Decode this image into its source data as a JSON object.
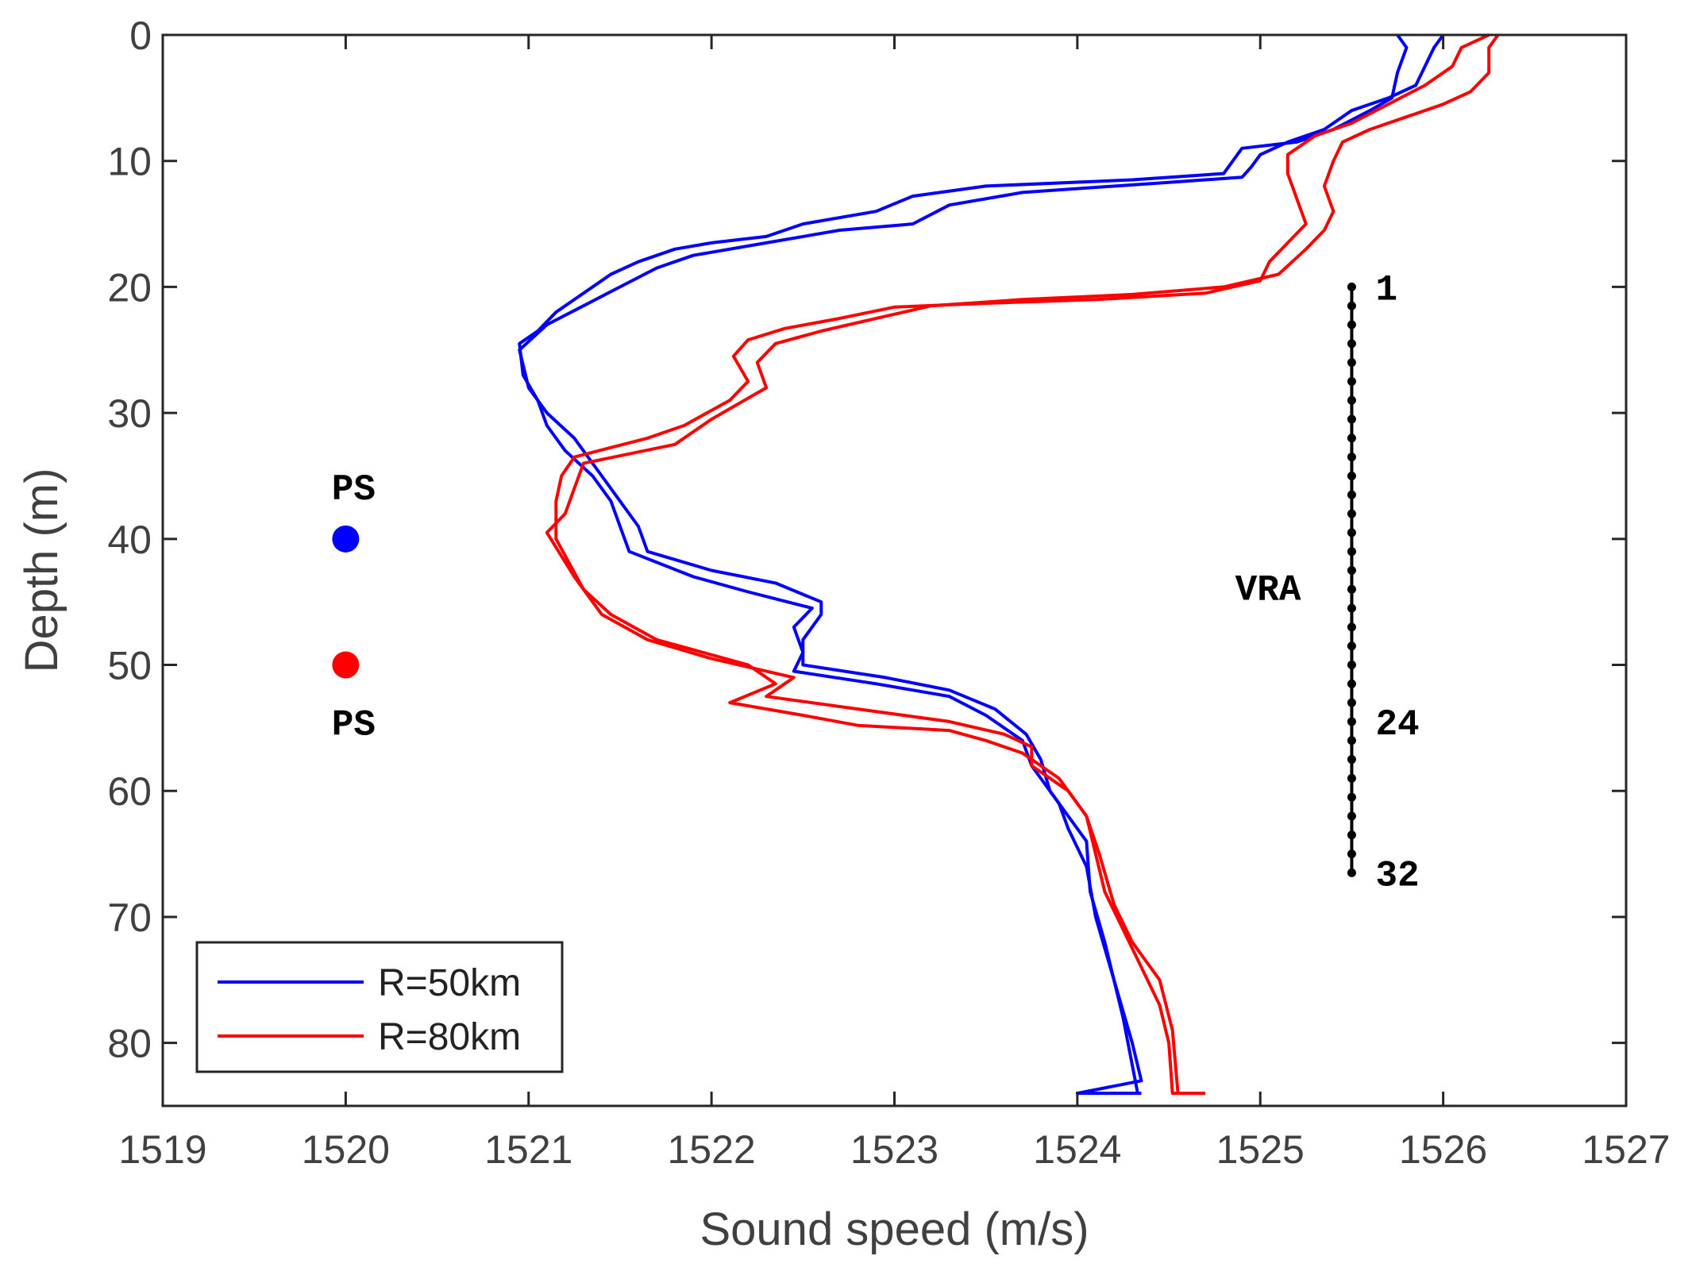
{
  "chart_data": {
    "type": "line",
    "title": "",
    "xlabel": "Sound speed (m/s)",
    "ylabel": "Depth (m)",
    "xlim": [
      1519,
      1527
    ],
    "ylim": [
      0,
      85
    ],
    "y_reversed": true,
    "xticks": [
      1519,
      1520,
      1521,
      1522,
      1523,
      1524,
      1525,
      1526,
      1527
    ],
    "yticks": [
      0,
      10,
      20,
      30,
      40,
      50,
      60,
      70,
      80
    ],
    "grid": false,
    "legend": {
      "location": "bottom-left",
      "entries": [
        {
          "label": "R=50km",
          "color": "#0000ff"
        },
        {
          "label": "R=80km",
          "color": "#ff0000"
        }
      ]
    },
    "series": [
      {
        "name": "R=50km profile A",
        "legend_label": "R=50km",
        "color": "#0000ff",
        "points": [
          [
            1525.75,
            0
          ],
          [
            1525.8,
            1
          ],
          [
            1525.75,
            3
          ],
          [
            1525.72,
            5
          ],
          [
            1525.6,
            6
          ],
          [
            1525.4,
            7.5
          ],
          [
            1525.2,
            8.5
          ],
          [
            1524.9,
            9
          ],
          [
            1524.85,
            10
          ],
          [
            1524.8,
            11
          ],
          [
            1524.3,
            11.5
          ],
          [
            1523.5,
            12
          ],
          [
            1523.1,
            12.8
          ],
          [
            1522.9,
            14
          ],
          [
            1522.5,
            15
          ],
          [
            1522.3,
            16
          ],
          [
            1522.0,
            16.5
          ],
          [
            1521.8,
            17
          ],
          [
            1521.6,
            18
          ],
          [
            1521.45,
            19
          ],
          [
            1521.3,
            20.5
          ],
          [
            1521.15,
            22
          ],
          [
            1521.05,
            23.5
          ],
          [
            1520.95,
            24.5
          ],
          [
            1520.97,
            27
          ],
          [
            1521.05,
            29
          ],
          [
            1521.1,
            31
          ],
          [
            1521.2,
            33
          ],
          [
            1521.35,
            35
          ],
          [
            1521.45,
            37
          ],
          [
            1521.5,
            39
          ],
          [
            1521.55,
            41
          ],
          [
            1521.9,
            43
          ],
          [
            1522.2,
            44.2
          ],
          [
            1522.55,
            45.5
          ],
          [
            1522.45,
            47
          ],
          [
            1522.5,
            49
          ],
          [
            1522.45,
            50.5
          ],
          [
            1522.9,
            51.5
          ],
          [
            1523.3,
            52.5
          ],
          [
            1523.5,
            54
          ],
          [
            1523.7,
            56
          ],
          [
            1523.75,
            58
          ],
          [
            1523.9,
            61
          ],
          [
            1523.95,
            63
          ],
          [
            1524.05,
            66
          ],
          [
            1524.1,
            70
          ],
          [
            1524.2,
            75
          ],
          [
            1524.3,
            80
          ],
          [
            1524.35,
            83
          ],
          [
            1524.0,
            84
          ],
          [
            1524.35,
            84
          ]
        ]
      },
      {
        "name": "R=50km profile B",
        "legend_label": "R=50km",
        "color": "#0000ff",
        "points": [
          [
            1526.0,
            0
          ],
          [
            1525.95,
            1
          ],
          [
            1525.9,
            2.5
          ],
          [
            1525.85,
            4
          ],
          [
            1525.7,
            5
          ],
          [
            1525.5,
            6
          ],
          [
            1525.35,
            7.5
          ],
          [
            1525.15,
            8.5
          ],
          [
            1525.0,
            9.5
          ],
          [
            1524.95,
            10.5
          ],
          [
            1524.9,
            11.3
          ],
          [
            1524.5,
            11.7
          ],
          [
            1523.7,
            12.5
          ],
          [
            1523.3,
            13.5
          ],
          [
            1523.1,
            15
          ],
          [
            1522.7,
            15.5
          ],
          [
            1522.3,
            16.5
          ],
          [
            1521.9,
            17.5
          ],
          [
            1521.7,
            18.5
          ],
          [
            1521.5,
            20
          ],
          [
            1521.3,
            21.5
          ],
          [
            1521.1,
            23
          ],
          [
            1520.95,
            25
          ],
          [
            1521.0,
            28
          ],
          [
            1521.1,
            30
          ],
          [
            1521.25,
            32
          ],
          [
            1521.4,
            35
          ],
          [
            1521.5,
            37
          ],
          [
            1521.6,
            39
          ],
          [
            1521.65,
            41
          ],
          [
            1522.0,
            42.5
          ],
          [
            1522.35,
            43.5
          ],
          [
            1522.6,
            45
          ],
          [
            1522.6,
            46
          ],
          [
            1522.5,
            48
          ],
          [
            1522.5,
            50
          ],
          [
            1522.95,
            51
          ],
          [
            1523.3,
            52
          ],
          [
            1523.55,
            53.5
          ],
          [
            1523.72,
            55.5
          ],
          [
            1523.8,
            57.5
          ],
          [
            1523.85,
            60
          ],
          [
            1523.95,
            62
          ],
          [
            1524.05,
            64
          ],
          [
            1524.07,
            68
          ],
          [
            1524.15,
            72
          ],
          [
            1524.25,
            78
          ],
          [
            1524.33,
            84
          ]
        ]
      },
      {
        "name": "R=80km profile A",
        "legend_label": "R=80km",
        "color": "#ff0000",
        "points": [
          [
            1526.25,
            0
          ],
          [
            1526.1,
            1
          ],
          [
            1526.05,
            2.5
          ],
          [
            1525.9,
            4
          ],
          [
            1525.7,
            5.5
          ],
          [
            1525.5,
            7
          ],
          [
            1525.3,
            8
          ],
          [
            1525.15,
            9.5
          ],
          [
            1525.15,
            11
          ],
          [
            1525.2,
            13
          ],
          [
            1525.25,
            15
          ],
          [
            1525.15,
            16.5
          ],
          [
            1525.05,
            18
          ],
          [
            1525.0,
            19.5
          ],
          [
            1524.7,
            20.5
          ],
          [
            1524.1,
            21
          ],
          [
            1523.5,
            21.3
          ],
          [
            1523.0,
            21.6
          ],
          [
            1522.7,
            22.5
          ],
          [
            1522.4,
            23.3
          ],
          [
            1522.2,
            24.2
          ],
          [
            1522.12,
            25.5
          ],
          [
            1522.2,
            27.5
          ],
          [
            1522.1,
            29
          ],
          [
            1521.85,
            31
          ],
          [
            1521.65,
            32
          ],
          [
            1521.25,
            33.5
          ],
          [
            1521.18,
            35
          ],
          [
            1521.15,
            37
          ],
          [
            1521.15,
            40
          ],
          [
            1521.3,
            44
          ],
          [
            1521.45,
            46
          ],
          [
            1521.7,
            48
          ],
          [
            1522.2,
            50
          ],
          [
            1522.35,
            51.5
          ],
          [
            1522.1,
            53
          ],
          [
            1522.5,
            54
          ],
          [
            1522.8,
            54.8
          ],
          [
            1523.3,
            55.2
          ],
          [
            1523.5,
            56
          ],
          [
            1523.7,
            57
          ],
          [
            1523.9,
            59
          ],
          [
            1524.05,
            62
          ],
          [
            1524.1,
            65
          ],
          [
            1524.15,
            68
          ],
          [
            1524.25,
            71
          ],
          [
            1524.35,
            74
          ],
          [
            1524.45,
            77
          ],
          [
            1524.5,
            80
          ],
          [
            1524.52,
            84
          ],
          [
            1524.7,
            84
          ]
        ]
      },
      {
        "name": "R=80km profile B",
        "legend_label": "R=80km",
        "color": "#ff0000",
        "points": [
          [
            1526.3,
            0
          ],
          [
            1526.25,
            1
          ],
          [
            1526.25,
            3
          ],
          [
            1526.15,
            4.5
          ],
          [
            1526.0,
            5.5
          ],
          [
            1525.8,
            6.5
          ],
          [
            1525.6,
            7.5
          ],
          [
            1525.45,
            8.5
          ],
          [
            1525.4,
            10
          ],
          [
            1525.35,
            12
          ],
          [
            1525.4,
            14
          ],
          [
            1525.35,
            15.5
          ],
          [
            1525.25,
            17
          ],
          [
            1525.1,
            19
          ],
          [
            1524.8,
            20
          ],
          [
            1524.3,
            20.6
          ],
          [
            1523.7,
            21
          ],
          [
            1523.2,
            21.5
          ],
          [
            1522.9,
            22.5
          ],
          [
            1522.6,
            23.5
          ],
          [
            1522.35,
            24.5
          ],
          [
            1522.25,
            26
          ],
          [
            1522.3,
            28
          ],
          [
            1522.0,
            30.5
          ],
          [
            1521.8,
            32.5
          ],
          [
            1521.3,
            34
          ],
          [
            1521.25,
            36
          ],
          [
            1521.2,
            38
          ],
          [
            1521.1,
            39.5
          ],
          [
            1521.25,
            43
          ],
          [
            1521.4,
            46
          ],
          [
            1521.65,
            48
          ],
          [
            1522.0,
            49.5
          ],
          [
            1522.45,
            51
          ],
          [
            1522.3,
            52.5
          ],
          [
            1522.8,
            53.5
          ],
          [
            1523.3,
            54.5
          ],
          [
            1523.6,
            55.5
          ],
          [
            1523.75,
            56.5
          ],
          [
            1523.75,
            58
          ],
          [
            1523.95,
            60
          ],
          [
            1524.05,
            62
          ],
          [
            1524.12,
            65
          ],
          [
            1524.2,
            69
          ],
          [
            1524.3,
            72
          ],
          [
            1524.45,
            75
          ],
          [
            1524.52,
            79
          ],
          [
            1524.55,
            84
          ]
        ]
      }
    ],
    "markers": [
      {
        "label": "PS",
        "x": 1520,
        "y": 40,
        "color": "#0000ff",
        "label_side": "above"
      },
      {
        "label": "PS",
        "x": 1520,
        "y": 50,
        "color": "#ff0000",
        "label_side": "below"
      }
    ],
    "array": {
      "label": "VRA",
      "x": 1525.5,
      "depth_top": 20,
      "depth_bottom": 66.5,
      "elements": 32,
      "element_labels": [
        {
          "text": "1",
          "element": 1
        },
        {
          "text": "24",
          "element": 24
        },
        {
          "text": "32",
          "element": 32
        }
      ]
    }
  }
}
